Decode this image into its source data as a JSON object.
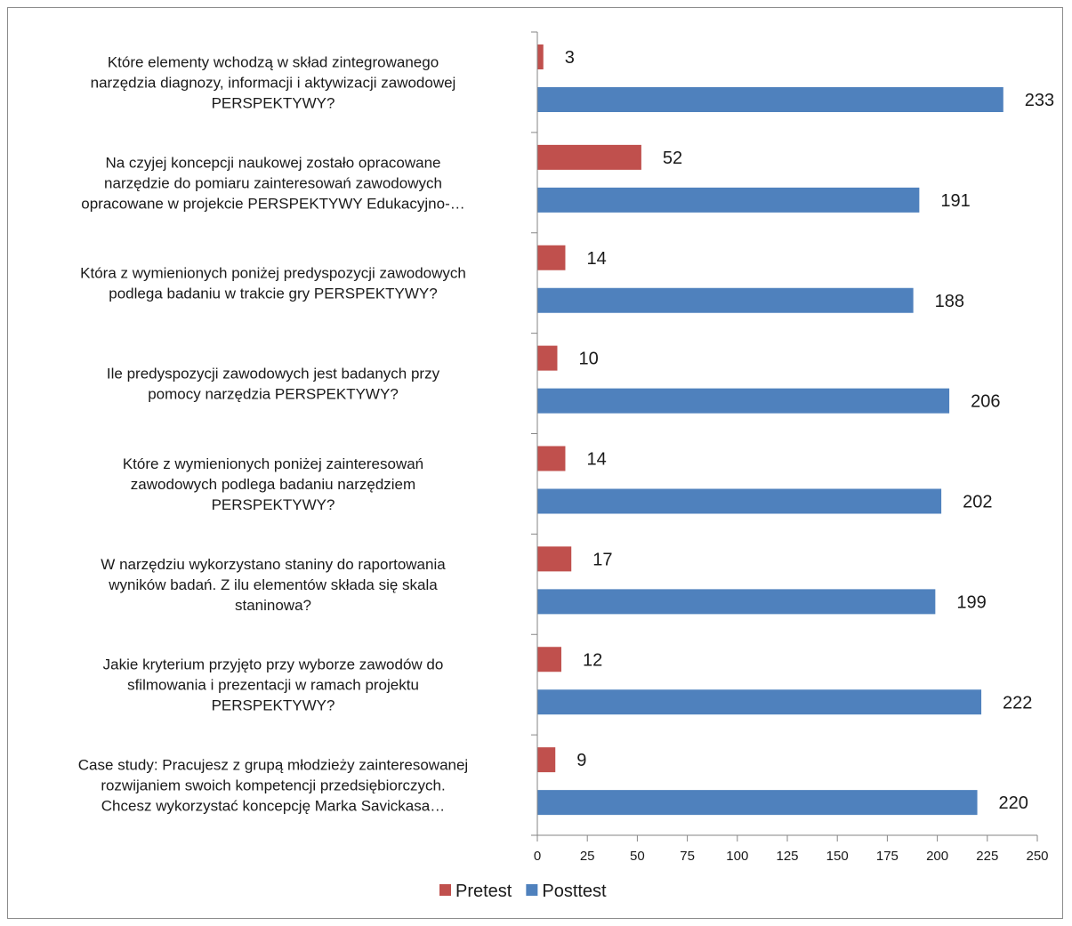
{
  "chart_data": {
    "type": "bar",
    "orientation": "horizontal",
    "title": "",
    "xlabel": "",
    "ylabel": "",
    "xlim": [
      0,
      250
    ],
    "xticks": [
      0,
      25,
      50,
      75,
      100,
      125,
      150,
      175,
      200,
      225,
      250
    ],
    "grid": false,
    "legend_position": "bottom",
    "categories": [
      "Które elementy wchodzą w skład zintegrowanego narzędzia diagnozy, informacji i aktywizacji zawodowej PERSPEKTYWY?",
      "Na czyjej koncepcji naukowej zostało opracowane narzędzie do pomiaru zainteresowań zawodowych opracowane w projekcie PERSPEKTYWY Edukacyjno-…",
      "Która z wymienionych poniżej predyspozycji zawodowych podlega badaniu w trakcie gry PERSPEKTYWY?",
      "Ile predyspozycji zawodowych jest badanych przy pomocy narzędzia PERSPEKTYWY?",
      "Które z wymienionych poniżej zainteresowań zawodowych podlega badaniu narzędziem PERSPEKTYWY?",
      "W narzędziu wykorzystano staniny do raportowania wyników badań. Z ilu elementów składa się skala staninowa?",
      "Jakie kryterium przyjęto przy wyborze zawodów do sfilmowania i prezentacji w ramach projektu PERSPEKTYWY?",
      "Case study: Pracujesz z grupą młodzieży zainteresowanej rozwijaniem swoich kompetencji przedsiębiorczych. Chcesz wykorzystać koncepcję Marka Savickasa…"
    ],
    "category_lines": [
      [
        "Które elementy wchodzą w skład zintegrowanego",
        "narzędzia diagnozy, informacji i aktywizacji zawodowej",
        "PERSPEKTYWY?"
      ],
      [
        "Na czyjej koncepcji naukowej zostało opracowane",
        "narzędzie do pomiaru zainteresowań zawodowych",
        "opracowane w projekcie PERSPEKTYWY Edukacyjno-…"
      ],
      [
        "Która z wymienionych poniżej predyspozycji zawodowych",
        "podlega badaniu w trakcie gry PERSPEKTYWY?"
      ],
      [
        "Ile predyspozycji zawodowych jest badanych przy",
        "pomocy narzędzia PERSPEKTYWY?"
      ],
      [
        "Które z wymienionych poniżej zainteresowań",
        "zawodowych podlega badaniu narzędziem",
        "PERSPEKTYWY?"
      ],
      [
        "W narzędziu wykorzystano staniny do raportowania",
        "wyników badań. Z ilu elementów składa się skala",
        "staninowa?"
      ],
      [
        "Jakie kryterium przyjęto przy wyborze zawodów do",
        "sfilmowania i prezentacji w ramach projektu",
        "PERSPEKTYWY?"
      ],
      [
        "Case study: Pracujesz z grupą młodzieży zainteresowanej",
        "rozwijaniem swoich kompetencji przedsiębiorczych.",
        "Chcesz wykorzystać koncepcję Marka Savickasa…"
      ]
    ],
    "series": [
      {
        "name": "Pretest",
        "color": "#c0504d",
        "values": [
          3,
          52,
          14,
          10,
          14,
          17,
          12,
          9
        ]
      },
      {
        "name": "Posttest",
        "color": "#4f81bd",
        "values": [
          233,
          191,
          188,
          206,
          202,
          199,
          222,
          220
        ]
      }
    ]
  }
}
